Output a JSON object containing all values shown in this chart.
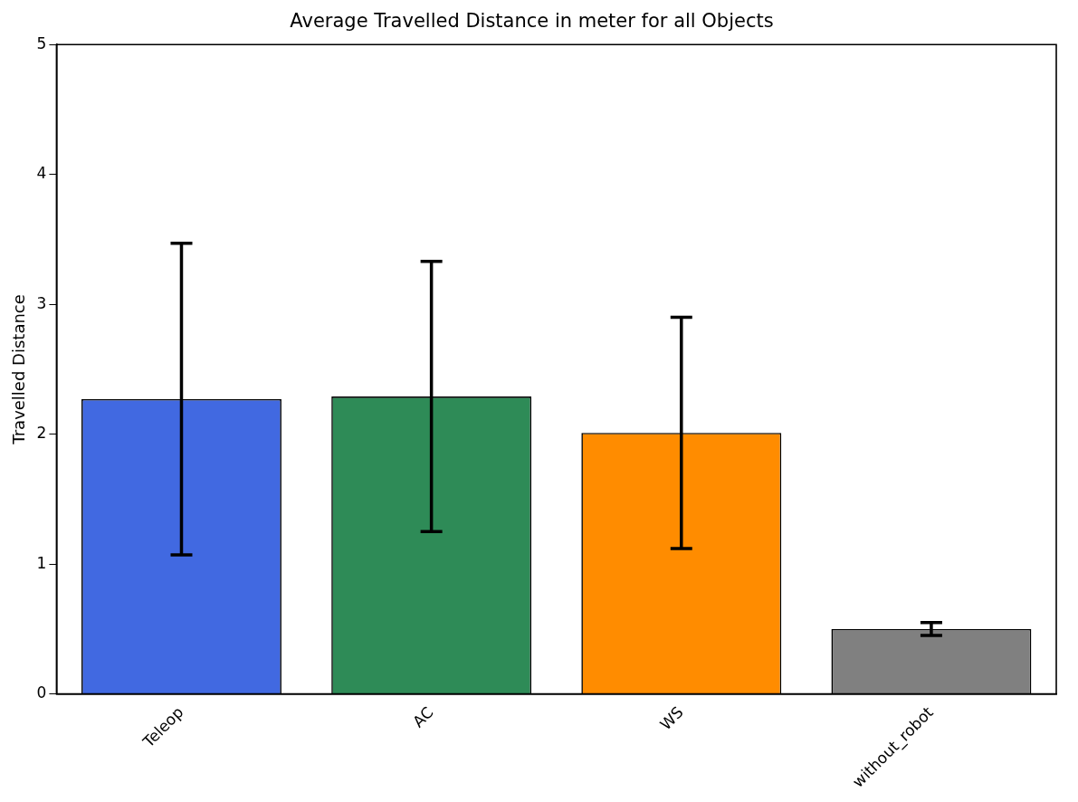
{
  "chart_data": {
    "type": "bar",
    "title": "Average Travelled Distance in meter for all Objects",
    "ylabel": "Travelled Distance",
    "categories": [
      "Teleop",
      "AC",
      "WS",
      "without_robot"
    ],
    "values": [
      2.27,
      2.29,
      2.01,
      0.5
    ],
    "errors": [
      1.2,
      1.04,
      0.89,
      0.05
    ],
    "colors": [
      "#4169e1",
      "#2e8b57",
      "#ff8c00",
      "#808080"
    ],
    "ylim": [
      0,
      5
    ],
    "yticks": [
      0,
      1,
      2,
      3,
      4,
      5
    ],
    "grid": false,
    "legend": false
  }
}
